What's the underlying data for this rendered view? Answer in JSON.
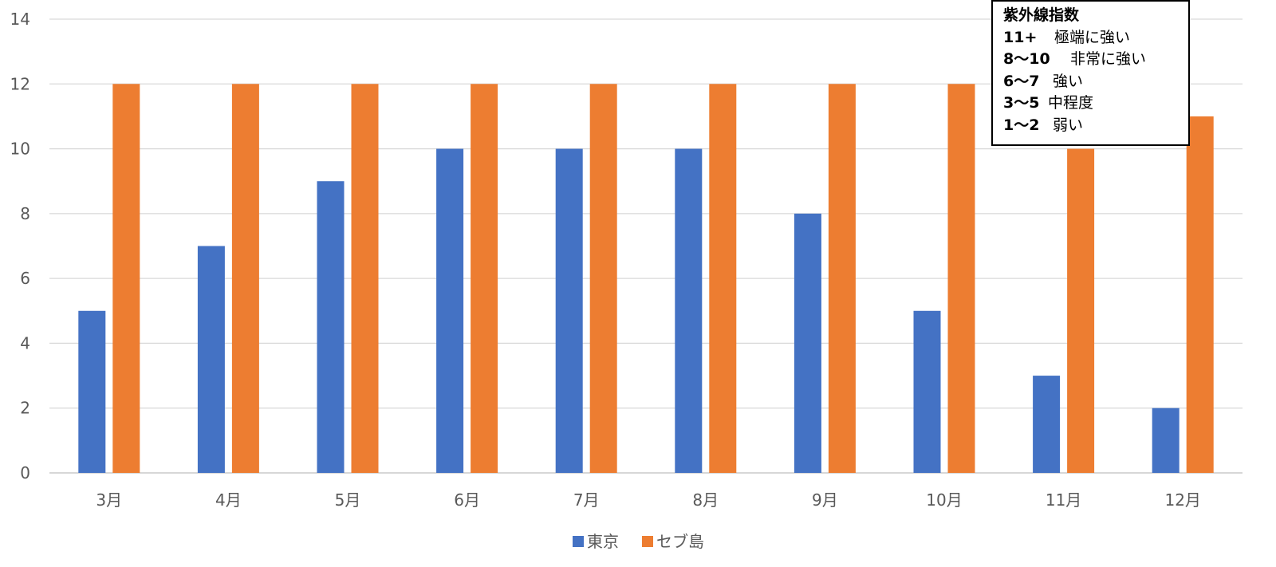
{
  "chart_data": {
    "type": "bar",
    "categories": [
      "3月",
      "4月",
      "5月",
      "6月",
      "7月",
      "8月",
      "9月",
      "10月",
      "11月",
      "12月"
    ],
    "series": [
      {
        "name": "東京",
        "color": "#4472C4",
        "values": [
          5,
          7,
          9,
          10,
          10,
          10,
          8,
          5,
          3,
          2
        ]
      },
      {
        "name": "セブ島",
        "color": "#ED7D31",
        "values": [
          12,
          12,
          12,
          12,
          12,
          12,
          12,
          12,
          10,
          11
        ]
      }
    ],
    "ylim": [
      0,
      14
    ],
    "yticks": [
      0,
      2,
      4,
      6,
      8,
      10,
      12,
      14
    ],
    "grid": true,
    "legend_position": "bottom"
  },
  "uv_index_box": {
    "title": "紫外線指数",
    "rows": [
      {
        "level": "11+",
        "desc": "極端に強い"
      },
      {
        "level": "8〜10",
        "desc": "非常に強い"
      },
      {
        "level": "6〜7",
        "desc": "強い"
      },
      {
        "level": "3〜5",
        "desc": "中程度"
      },
      {
        "level": "1〜2",
        "desc": "弱い"
      }
    ]
  }
}
